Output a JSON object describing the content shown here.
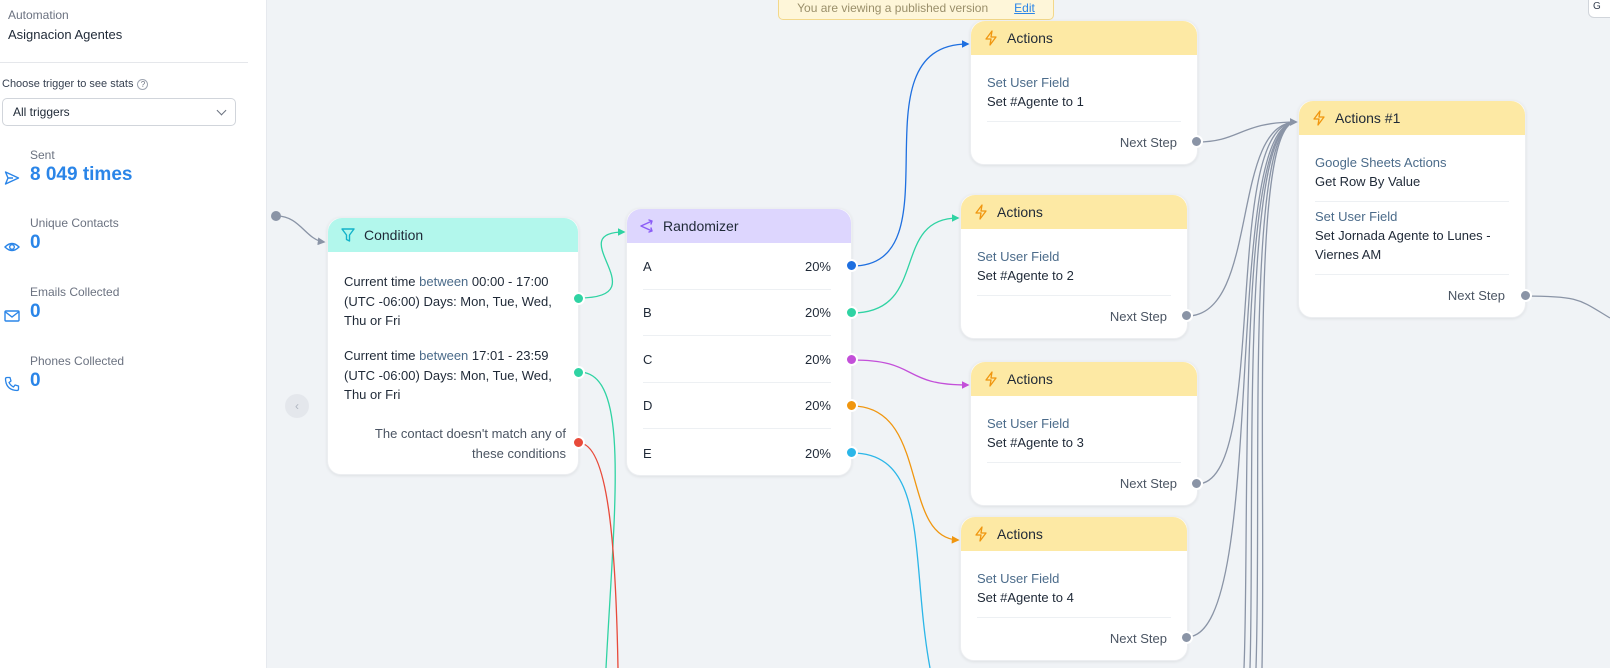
{
  "sidebar": {
    "label": "Automation",
    "title": "Asignacion Agentes",
    "choose_trigger": "Choose trigger to see stats",
    "help_glyph": "?",
    "trigger_select": "All triggers",
    "stats": [
      {
        "label": "Sent",
        "value": "8 049 times",
        "icon": "send-icon"
      },
      {
        "label": "Unique Contacts",
        "value": "0",
        "icon": "eye-icon"
      },
      {
        "label": "Emails Collected",
        "value": "0",
        "icon": "mail-icon"
      },
      {
        "label": "Phones Collected",
        "value": "0",
        "icon": "phone-icon"
      }
    ]
  },
  "banner": {
    "text": "You are viewing a published version",
    "edit": "Edit"
  },
  "corner_button": "G",
  "collapse_glyph": "‹",
  "condition": {
    "title": "Condition",
    "rows": [
      {
        "kw": "between",
        "pre": "Current time ",
        "post": " 00:00 - 17:00 (UTC -06:00) Days: Mon, Tue, Wed, Thu or Fri"
      },
      {
        "kw": "between",
        "pre": "Current time ",
        "post": " 17:01 - 23:59 (UTC -06:00) Days: Mon, Tue, Wed, Thu or Fri"
      }
    ],
    "else_text": "The contact doesn't match any of these conditions"
  },
  "randomizer": {
    "title": "Randomizer",
    "rows": [
      {
        "label": "A",
        "percent": "20%",
        "color": "#1e6fe0"
      },
      {
        "label": "B",
        "percent": "20%",
        "color": "#2fd3a3"
      },
      {
        "label": "C",
        "percent": "20%",
        "color": "#c34fd9"
      },
      {
        "label": "D",
        "percent": "20%",
        "color": "#f0960f"
      },
      {
        "label": "E",
        "percent": "20%",
        "color": "#2bb6e8"
      }
    ]
  },
  "actions": [
    {
      "title": "Actions",
      "type": "Set User Field",
      "value": "Set #Agente to 1",
      "next": "Next Step"
    },
    {
      "title": "Actions",
      "type": "Set User Field",
      "value": "Set #Agente to 2",
      "next": "Next Step"
    },
    {
      "title": "Actions",
      "type": "Set User Field",
      "value": "Set #Agente to 3",
      "next": "Next Step"
    },
    {
      "title": "Actions",
      "type": "Set User Field",
      "value": "Set #Agente to 4",
      "next": "Next Step"
    }
  ],
  "actions1": {
    "title": "Actions #1",
    "items": [
      {
        "type": "Google Sheets Actions",
        "value": "Get Row By Value"
      },
      {
        "type": "Set User Field",
        "value": "Set Jornada Agente to Lunes - Viernes AM"
      }
    ],
    "next": "Next Step"
  },
  "colors": {
    "accent": "#2a85e8",
    "condition_header": "#b2f7ec",
    "randomizer_header": "#ddd6fe",
    "actions_header": "#fde9a4",
    "edge_gray": "#8a94a6",
    "red": "#e84a3a",
    "green": "#2fd3a3"
  }
}
